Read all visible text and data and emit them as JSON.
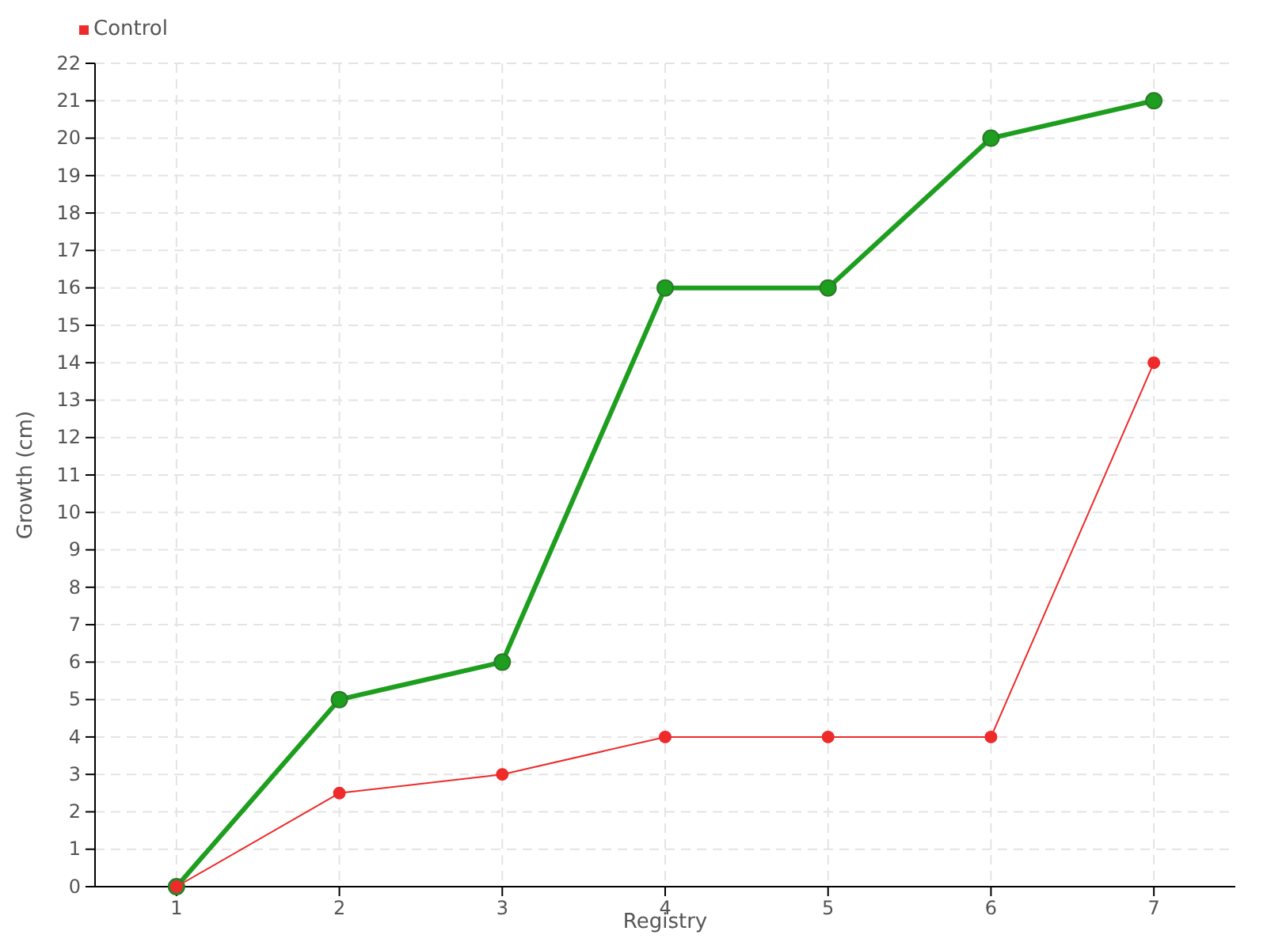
{
  "chart_data": {
    "type": "line",
    "xlabel": "Registry",
    "ylabel": "Growth (cm)",
    "categories": [
      "1",
      "2",
      "3",
      "4",
      "5",
      "6",
      "7"
    ],
    "series": [
      {
        "color": "#1e9e1e",
        "values": [
          0,
          5,
          6,
          16,
          16,
          20,
          21
        ]
      },
      {
        "name": "Control",
        "color": "#ee2a2a",
        "values": [
          0,
          2.5,
          3,
          4,
          4,
          4,
          14
        ]
      }
    ],
    "ylim": [
      0,
      22
    ],
    "yticks": [
      0,
      1,
      2,
      3,
      4,
      5,
      6,
      7,
      8,
      9,
      10,
      11,
      12,
      13,
      14,
      15,
      16,
      17,
      18,
      19,
      20,
      21,
      22
    ],
    "grid": true,
    "legend": "top left",
    "marker": "circle",
    "line_style": "solid"
  }
}
